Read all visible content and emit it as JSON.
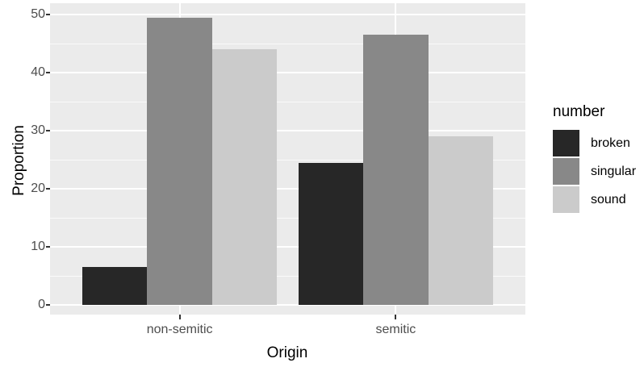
{
  "chart_data": {
    "type": "bar",
    "title": "",
    "xlabel": "Origin",
    "ylabel": "Proportion",
    "categories": [
      "non-semitic",
      "semitic"
    ],
    "series": [
      {
        "name": "broken",
        "color": "#272727",
        "values": [
          6.5,
          24.5
        ]
      },
      {
        "name": "singular",
        "color": "#888888",
        "values": [
          49.5,
          46.5
        ]
      },
      {
        "name": "sound",
        "color": "#cbcbcb",
        "values": [
          44.0,
          29.0
        ]
      }
    ],
    "ylim": [
      0,
      50
    ],
    "yticks": [
      0,
      10,
      20,
      30,
      40,
      50
    ],
    "grid": "major+minor",
    "legend": {
      "title": "number",
      "position": "right"
    },
    "colors": {
      "panel_bg": "#EBEBEB",
      "grid": "#FFFFFF",
      "tick_text": "#4D4D4D",
      "axis_title_text": "#000000",
      "tick_mark": "#333333"
    }
  }
}
